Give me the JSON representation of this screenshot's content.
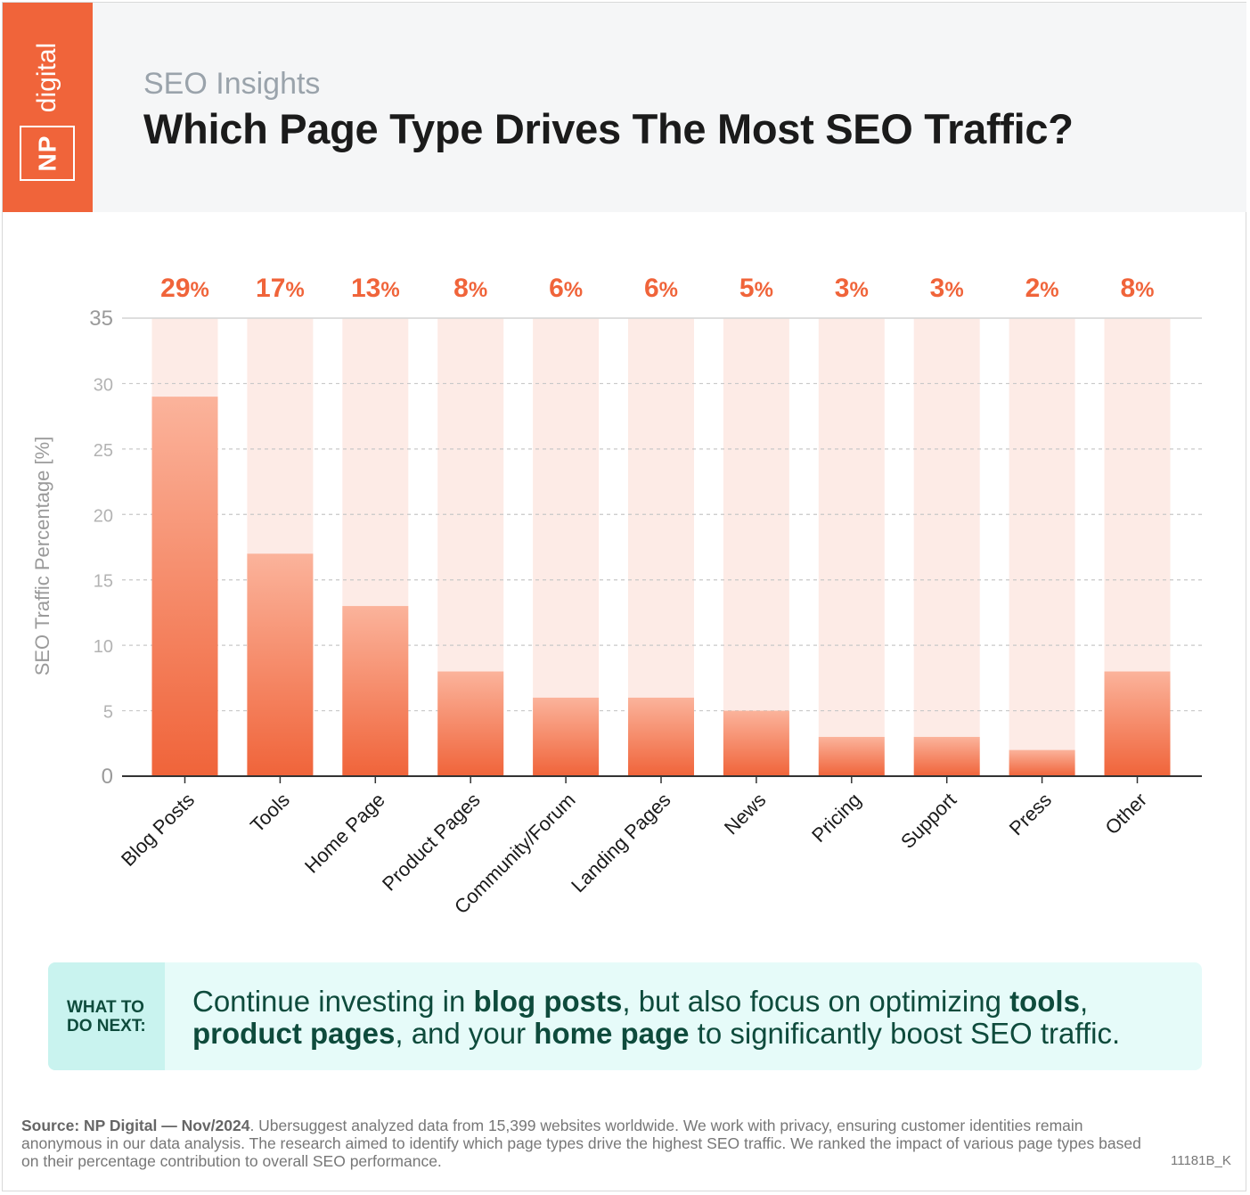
{
  "header": {
    "logo_np": "NP",
    "logo_digital": "digital",
    "subtitle": "SEO Insights",
    "title": "Which Page Type Drives The Most SEO Traffic?"
  },
  "colors": {
    "brand": "#f0643a",
    "bar_top": "#fbb39b",
    "bar_bottom": "#f0643a",
    "bar_bg": "#fdebe6",
    "value_label": "#f0643a",
    "callout_bg": "#e6fbf9",
    "callout_tag_bg": "#c9f3ef",
    "callout_text": "#0e4b3c"
  },
  "chart_data": {
    "type": "bar",
    "title": "Which Page Type Drives The Most SEO Traffic?",
    "xlabel": "",
    "ylabel": "SEO Traffic Percentage [%]",
    "ylim": [
      0,
      35
    ],
    "yticks": [
      0,
      5,
      10,
      15,
      20,
      25,
      30,
      35
    ],
    "grid": true,
    "categories": [
      "Blog Posts",
      "Tools",
      "Home Page",
      "Product Pages",
      "Community/Forum",
      "Landing Pages",
      "News",
      "Pricing",
      "Support",
      "Press",
      "Other"
    ],
    "values": [
      29,
      17,
      13,
      8,
      6,
      6,
      5,
      3,
      3,
      2,
      8
    ],
    "data_labels": [
      "29",
      "17",
      "13",
      "8",
      "6",
      "6",
      "5",
      "3",
      "3",
      "2",
      "8"
    ],
    "percent_sign": "%"
  },
  "callout": {
    "tag_line1": "WHAT TO",
    "tag_line2": "DO NEXT:",
    "text_1": "Continue investing in ",
    "bold_1": "blog posts",
    "text_2": ", but also focus on optimizing ",
    "bold_2": "tools",
    "text_3": ",",
    "bold_3": "product pages",
    "text_4": ", and your ",
    "bold_4": "home page",
    "text_5": " to significantly boost SEO traffic."
  },
  "footer": {
    "source_label": "Source:  NP Digital — Nov/2024",
    "source_text": ". Ubersuggest analyzed data from 15,399 websites worldwide. We work with privacy, ensuring customer identities remain anonymous in our data analysis. The research aimed to identify which page types drive the highest SEO traffic. We ranked the impact of various page types based on their percentage contribution to overall SEO performance.",
    "code": "11181B_K"
  }
}
